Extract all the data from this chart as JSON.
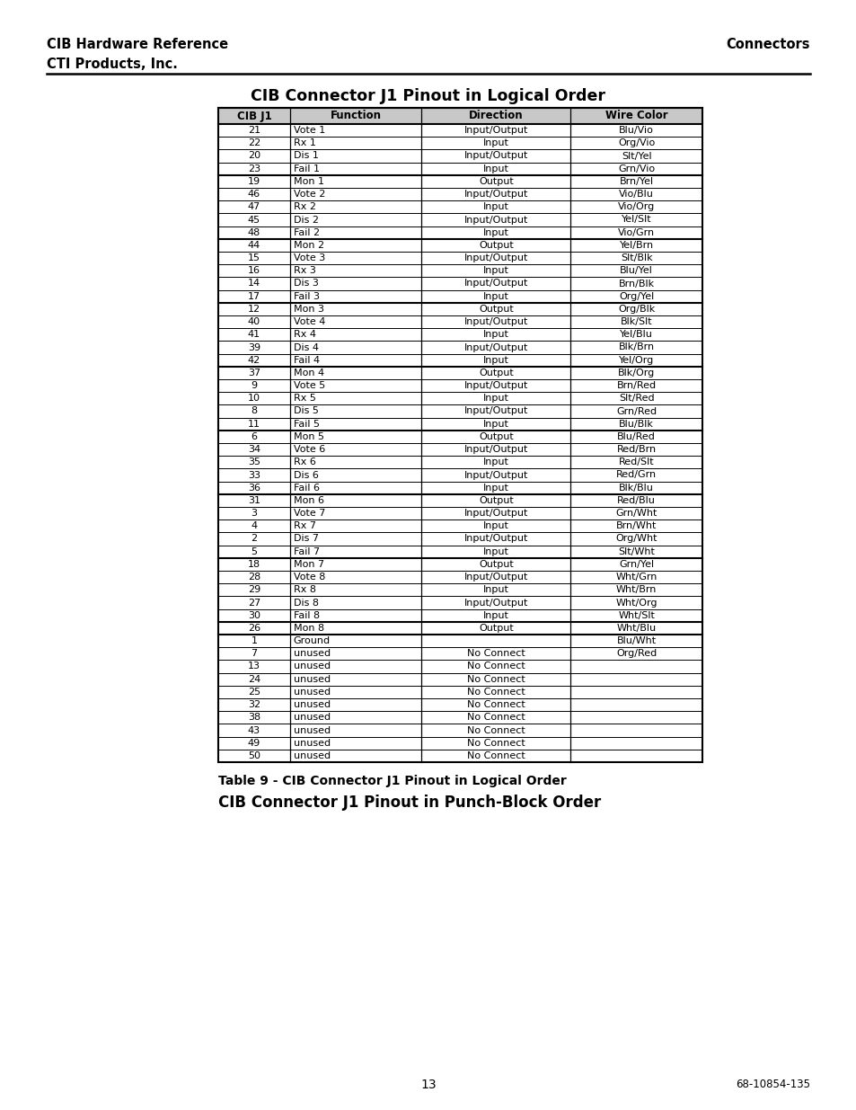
{
  "header_left_line1": "CIB Hardware Reference",
  "header_left_line2": "CTI Products, Inc.",
  "header_right": "Connectors",
  "title": "CIB Connector J1 Pinout in Logical Order",
  "col_headers": [
    "CIB J1",
    "Function",
    "Direction",
    "Wire Color"
  ],
  "rows": [
    [
      "21",
      "Vote 1",
      "Input/Output",
      "Blu/Vio"
    ],
    [
      "22",
      "Rx 1",
      "Input",
      "Org/Vio"
    ],
    [
      "20",
      "Dis 1",
      "Input/Output",
      "Slt/Yel"
    ],
    [
      "23",
      "Fail 1",
      "Input",
      "Grn/Vio"
    ],
    [
      "19",
      "Mon 1",
      "Output",
      "Brn/Yel"
    ],
    [
      "46",
      "Vote 2",
      "Input/Output",
      "Vio/Blu"
    ],
    [
      "47",
      "Rx 2",
      "Input",
      "Vio/Org"
    ],
    [
      "45",
      "Dis 2",
      "Input/Output",
      "Yel/Slt"
    ],
    [
      "48",
      "Fail 2",
      "Input",
      "Vio/Grn"
    ],
    [
      "44",
      "Mon 2",
      "Output",
      "Yel/Brn"
    ],
    [
      "15",
      "Vote 3",
      "Input/Output",
      "Slt/Blk"
    ],
    [
      "16",
      "Rx 3",
      "Input",
      "Blu/Yel"
    ],
    [
      "14",
      "Dis 3",
      "Input/Output",
      "Brn/Blk"
    ],
    [
      "17",
      "Fail 3",
      "Input",
      "Org/Yel"
    ],
    [
      "12",
      "Mon 3",
      "Output",
      "Org/Blk"
    ],
    [
      "40",
      "Vote 4",
      "Input/Output",
      "Blk/Slt"
    ],
    [
      "41",
      "Rx 4",
      "Input",
      "Yel/Blu"
    ],
    [
      "39",
      "Dis 4",
      "Input/Output",
      "Blk/Brn"
    ],
    [
      "42",
      "Fail 4",
      "Input",
      "Yel/Org"
    ],
    [
      "37",
      "Mon 4",
      "Output",
      "Blk/Org"
    ],
    [
      "9",
      "Vote 5",
      "Input/Output",
      "Brn/Red"
    ],
    [
      "10",
      "Rx 5",
      "Input",
      "Slt/Red"
    ],
    [
      "8",
      "Dis 5",
      "Input/Output",
      "Grn/Red"
    ],
    [
      "11",
      "Fail 5",
      "Input",
      "Blu/Blk"
    ],
    [
      "6",
      "Mon 5",
      "Output",
      "Blu/Red"
    ],
    [
      "34",
      "Vote 6",
      "Input/Output",
      "Red/Brn"
    ],
    [
      "35",
      "Rx 6",
      "Input",
      "Red/Slt"
    ],
    [
      "33",
      "Dis 6",
      "Input/Output",
      "Red/Grn"
    ],
    [
      "36",
      "Fail 6",
      "Input",
      "Blk/Blu"
    ],
    [
      "31",
      "Mon 6",
      "Output",
      "Red/Blu"
    ],
    [
      "3",
      "Vote 7",
      "Input/Output",
      "Grn/Wht"
    ],
    [
      "4",
      "Rx 7",
      "Input",
      "Brn/Wht"
    ],
    [
      "2",
      "Dis 7",
      "Input/Output",
      "Org/Wht"
    ],
    [
      "5",
      "Fail 7",
      "Input",
      "Slt/Wht"
    ],
    [
      "18",
      "Mon 7",
      "Output",
      "Grn/Yel"
    ],
    [
      "28",
      "Vote 8",
      "Input/Output",
      "Wht/Grn"
    ],
    [
      "29",
      "Rx 8",
      "Input",
      "Wht/Brn"
    ],
    [
      "27",
      "Dis 8",
      "Input/Output",
      "Wht/Org"
    ],
    [
      "30",
      "Fail 8",
      "Input",
      "Wht/Slt"
    ],
    [
      "26",
      "Mon 8",
      "Output",
      "Wht/Blu"
    ],
    [
      "1",
      "Ground",
      "",
      "Blu/Wht"
    ],
    [
      "7",
      "unused",
      "No Connect",
      "Org/Red"
    ],
    [
      "13",
      "unused",
      "No Connect",
      ""
    ],
    [
      "24",
      "unused",
      "No Connect",
      ""
    ],
    [
      "25",
      "unused",
      "No Connect",
      ""
    ],
    [
      "32",
      "unused",
      "No Connect",
      ""
    ],
    [
      "38",
      "unused",
      "No Connect",
      ""
    ],
    [
      "43",
      "unused",
      "No Connect",
      ""
    ],
    [
      "49",
      "unused",
      "No Connect",
      ""
    ],
    [
      "50",
      "unused",
      "No Connect",
      ""
    ]
  ],
  "group_separators_after": [
    4,
    9,
    14,
    19,
    24,
    29,
    34,
    39,
    40
  ],
  "caption": "Table 9 - CIB Connector J1 Pinout in Logical Order",
  "footer_heading": "CIB Connector J1 Pinout in Punch-Block Order",
  "page_number": "13",
  "doc_ref": "68-10854-135",
  "bg_color": "#ffffff",
  "table_header_bg": "#c8c8c8"
}
